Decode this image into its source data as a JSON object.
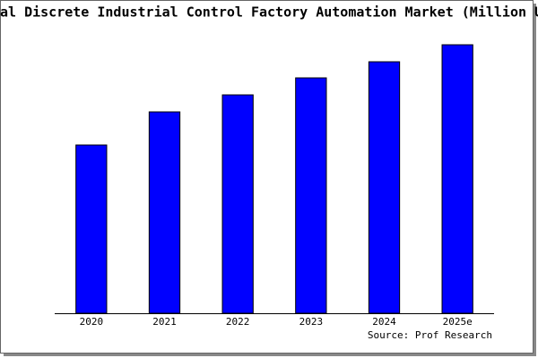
{
  "chart_data": {
    "type": "bar",
    "title": "al Discrete Industrial Control Factory Automation Market (Million U",
    "categories": [
      "2020",
      "2021",
      "2022",
      "2023",
      "2024",
      "2025e"
    ],
    "values": [
      188,
      225,
      244,
      263,
      281,
      300
    ],
    "color": "#0000ff",
    "ylim": [
      0,
      302
    ],
    "source": "Source: Prof Research"
  }
}
